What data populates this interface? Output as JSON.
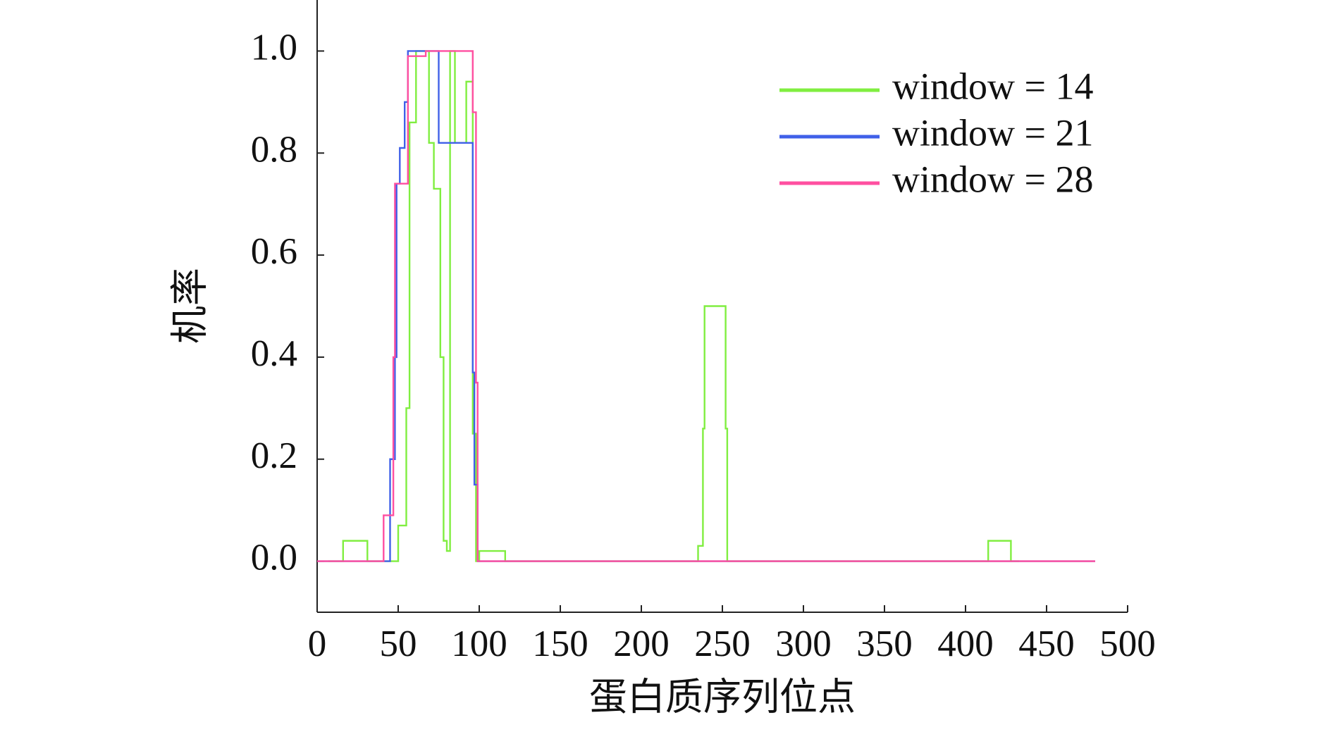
{
  "chart_data": {
    "type": "line",
    "x_label": "蛋白质序列位点",
    "y_label": "机率",
    "xlim": [
      0,
      500
    ],
    "xticks": [
      0,
      50,
      100,
      150,
      200,
      250,
      300,
      350,
      400,
      450,
      500
    ],
    "ylim": [
      -0.1,
      1.1
    ],
    "yticks": [
      {
        "value": 0,
        "label": "0.0"
      },
      {
        "value": 0.2,
        "label": "0.2"
      },
      {
        "value": 0.4,
        "label": "0.4"
      },
      {
        "value": 0.6,
        "label": "0.6"
      },
      {
        "value": 0.8,
        "label": "0.8"
      },
      {
        "value": 1,
        "label": "1.0"
      }
    ],
    "legend": "upper right",
    "step": true,
    "series": [
      {
        "name": "window = 14",
        "color": "#80ee40",
        "x": [
          7,
          16,
          16,
          31,
          31,
          50,
          50,
          55,
          55,
          57,
          57,
          61,
          61,
          69,
          69,
          72,
          72,
          76,
          76,
          78,
          78,
          80,
          80,
          82,
          82,
          85,
          85,
          92,
          92,
          96,
          96,
          98,
          98,
          100,
          100,
          116,
          116,
          235,
          235,
          238,
          238,
          239,
          239,
          252,
          252,
          253,
          253,
          414,
          414,
          428,
          428,
          433
        ],
        "values": [
          0,
          0,
          0.04,
          0.04,
          0,
          0,
          0.07,
          0.07,
          0.3,
          0.3,
          0.86,
          0.86,
          1.0,
          1.0,
          0.82,
          0.82,
          0.73,
          0.73,
          0.4,
          0.4,
          0.04,
          0.04,
          0.02,
          0.02,
          1.0,
          1.0,
          0.82,
          0.82,
          0.94,
          0.94,
          0.25,
          0.25,
          0,
          0,
          0.02,
          0.02,
          0,
          0,
          0.03,
          0.03,
          0.26,
          0.26,
          0.5,
          0.5,
          0.26,
          0.26,
          0,
          0,
          0.04,
          0.04,
          0,
          0
        ]
      },
      {
        "name": "window = 21",
        "color": "#4060e8",
        "x": [
          0,
          45,
          45,
          48,
          48,
          49,
          49,
          51,
          51,
          54,
          54,
          56,
          56,
          75,
          75,
          96,
          96,
          97,
          97,
          99,
          99,
          480
        ],
        "values": [
          0,
          0,
          0.2,
          0.2,
          0.4,
          0.4,
          0.74,
          0.74,
          0.81,
          0.81,
          0.9,
          0.9,
          1.0,
          1.0,
          0.82,
          0.82,
          0.37,
          0.37,
          0.15,
          0.15,
          0,
          0
        ]
      },
      {
        "name": "window = 28",
        "color": "#ff4fa0",
        "x": [
          0,
          41,
          41,
          47,
          47,
          48,
          48,
          56,
          56,
          67,
          67,
          96,
          96,
          98,
          98,
          99,
          99,
          480
        ],
        "values": [
          0,
          0,
          0.09,
          0.09,
          0.4,
          0.4,
          0.74,
          0.74,
          0.99,
          0.99,
          1.0,
          1.0,
          0.88,
          0.88,
          0.35,
          0.35,
          0,
          0
        ]
      }
    ]
  }
}
